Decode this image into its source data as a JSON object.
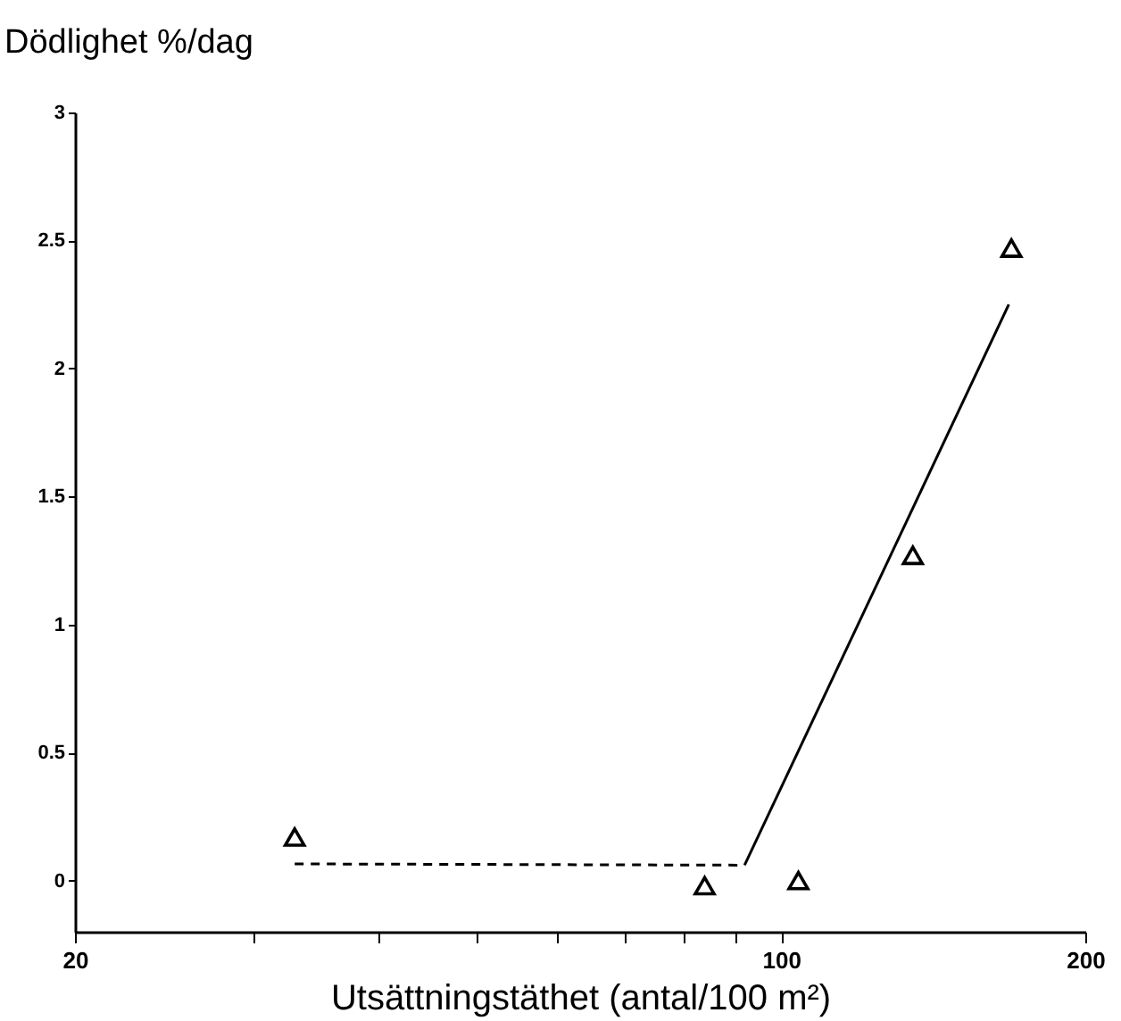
{
  "chart_data": {
    "type": "scatter",
    "xlabel": "Utsättningstäthet (antal/100 m²)",
    "ylabel": "Dödlighet %/dag",
    "log": "x",
    "xlim": [
      20,
      200
    ],
    "xticks": [
      20,
      {
        "value": 30,
        "label": null
      },
      {
        "value": 40,
        "label": null
      },
      {
        "value": 50,
        "label": null
      },
      {
        "value": 60,
        "label": null
      },
      {
        "value": 70,
        "label": null
      },
      {
        "value": 80,
        "label": null
      },
      {
        "value": 90,
        "label": null
      },
      100,
      200
    ],
    "ylim": [
      -0.2,
      3
    ],
    "yticks": [
      0,
      0.5,
      1,
      1.5,
      2,
      2.5,
      3
    ],
    "grid": false,
    "series": [
      {
        "color": "#000000",
        "marker": "triangle",
        "x": [
          33,
          84,
          104,
          135,
          169
        ],
        "values": [
          0.17,
          -0.02,
          0.0,
          1.27,
          2.47
        ]
      },
      {
        "type": "line",
        "color": "#000000",
        "marker": "none",
        "line_style": "dashed",
        "x": [
          33,
          92
        ],
        "values": [
          0.065,
          0.06
        ]
      },
      {
        "type": "line",
        "color": "#000000",
        "marker": "none",
        "line_style": "solid",
        "x": [
          92,
          168
        ],
        "values": [
          0.06,
          2.25
        ]
      }
    ]
  }
}
